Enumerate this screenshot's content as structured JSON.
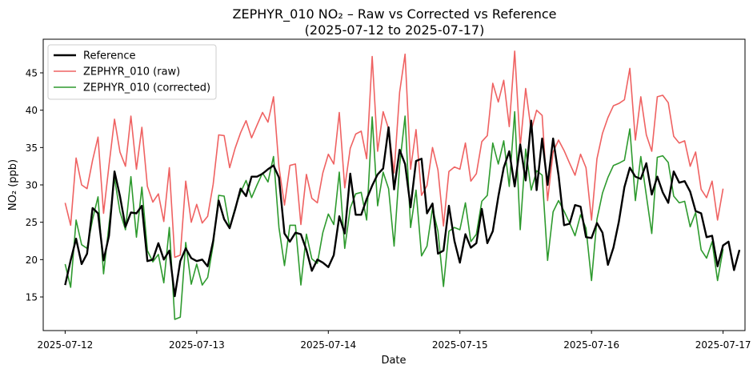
{
  "chart_data": {
    "type": "line",
    "title_line1": "ZEPHYR_010 NO₂ – Raw vs Corrected vs Reference",
    "title_line2": "(2025-07-12 to 2025-07-17)",
    "xlabel": "Date",
    "ylabel": "NO₂ (ppb)",
    "x_start": "2025-07-12T00:00",
    "x_step_hours": 1,
    "xlim": [
      "2025-07-11T20:00",
      "2025-07-17T04:00"
    ],
    "ylim": [
      10.5,
      49.5
    ],
    "x_ticks": [
      "2025-07-12",
      "2025-07-13",
      "2025-07-14",
      "2025-07-15",
      "2025-07-16",
      "2025-07-17"
    ],
    "y_ticks": [
      15,
      20,
      25,
      30,
      35,
      40,
      45
    ],
    "grid": false,
    "legend_position": "top-left",
    "series": [
      {
        "name": "Reference",
        "color": "#000000",
        "values": [
          16.6,
          19.9,
          22.8,
          19.4,
          20.8,
          26.9,
          26.2,
          19.9,
          23.2,
          31.8,
          28.5,
          24.4,
          26.3,
          26.2,
          27.2,
          19.8,
          20.0,
          22.2,
          20.0,
          21.2,
          15.1,
          19.8,
          21.5,
          20.2,
          19.8,
          20.0,
          19.1,
          22.5,
          27.9,
          25.4,
          24.2,
          26.7,
          29.5,
          28.5,
          31.1,
          31.1,
          31.5,
          32.1,
          32.6,
          31.0,
          23.5,
          22.4,
          23.6,
          23.4,
          21.3,
          18.5,
          20.0,
          19.6,
          19.0,
          20.6,
          25.8,
          23.5,
          31.5,
          26.0,
          26.0,
          28.1,
          29.9,
          31.4,
          32.2,
          37.7,
          29.4,
          34.7,
          32.8,
          27.0,
          33.2,
          33.5,
          26.2,
          27.5,
          20.8,
          21.2,
          27.2,
          22.5,
          19.6,
          23.4,
          21.6,
          22.2,
          26.8,
          22.2,
          23.8,
          28.4,
          32.3,
          34.5,
          29.8,
          35.4,
          30.6,
          38.6,
          29.3,
          36.2,
          30.0,
          36.2,
          31.3,
          24.6,
          24.8,
          27.3,
          27.1,
          23.0,
          22.9,
          24.9,
          23.6,
          19.3,
          21.6,
          25.1,
          29.7,
          32.3,
          31.1,
          30.8,
          32.9,
          28.7,
          31.1,
          29.0,
          27.6,
          31.8,
          30.3,
          30.5,
          29.1,
          26.5,
          26.2,
          23.0,
          23.2,
          19.1,
          21.9,
          22.4,
          18.6,
          21.3
        ]
      },
      {
        "name": "ZEPHYR_010 (raw)",
        "color": "#ef6262",
        "values": [
          27.6,
          24.6,
          33.6,
          30.0,
          29.5,
          33.3,
          36.4,
          26.2,
          32.6,
          38.8,
          34.4,
          32.5,
          39.2,
          32.1,
          37.7,
          29.8,
          27.7,
          28.8,
          25.1,
          32.3,
          20.3,
          20.6,
          30.5,
          25.0,
          27.4,
          24.9,
          25.8,
          30.1,
          36.7,
          36.6,
          32.3,
          34.9,
          37.0,
          38.6,
          36.3,
          38.0,
          39.7,
          38.4,
          41.8,
          32.4,
          27.3,
          32.6,
          32.8,
          24.7,
          31.4,
          28.2,
          27.6,
          31.6,
          34.1,
          32.8,
          39.7,
          29.6,
          34.9,
          36.8,
          37.2,
          33.5,
          47.2,
          34.5,
          39.8,
          37.5,
          31.6,
          42.4,
          47.5,
          32.1,
          37.4,
          28.6,
          29.9,
          35.0,
          32.0,
          24.5,
          31.8,
          32.4,
          32.1,
          35.6,
          30.5,
          31.5,
          35.8,
          36.6,
          43.6,
          41.1,
          44.0,
          37.8,
          47.9,
          35.1,
          42.9,
          37.3,
          40.0,
          39.3,
          27.9,
          34.4,
          36.0,
          34.6,
          32.9,
          31.3,
          34.1,
          32.3,
          25.3,
          33.5,
          36.9,
          39.0,
          40.6,
          40.9,
          41.4,
          45.6,
          36.0,
          41.8,
          36.7,
          34.5,
          41.8,
          42.0,
          41.0,
          36.5,
          35.6,
          35.9,
          32.5,
          34.4,
          29.4,
          28.3,
          30.5,
          25.3,
          29.5
        ]
      },
      {
        "name": "ZEPHYR_010 (corrected)",
        "color": "#2e9a2e",
        "values": [
          19.4,
          16.3,
          25.3,
          22.0,
          21.5,
          25.4,
          28.4,
          18.1,
          24.6,
          30.9,
          26.4,
          24.0,
          31.1,
          23.0,
          29.7,
          21.2,
          19.7,
          20.7,
          16.9,
          24.3,
          12.0,
          12.3,
          22.3,
          16.7,
          19.4,
          16.6,
          17.6,
          22.0,
          28.6,
          28.5,
          24.3,
          26.9,
          29.0,
          30.6,
          28.3,
          30.0,
          31.6,
          30.4,
          33.8,
          24.3,
          19.2,
          24.6,
          24.6,
          16.6,
          23.4,
          20.1,
          19.5,
          23.6,
          26.1,
          24.7,
          31.7,
          21.5,
          26.9,
          28.8,
          29.0,
          25.3,
          39.1,
          27.2,
          31.7,
          29.5,
          21.8,
          32.6,
          39.2,
          24.3,
          29.3,
          20.5,
          21.8,
          26.9,
          23.8,
          16.4,
          23.8,
          24.3,
          24.0,
          27.6,
          22.4,
          23.4,
          27.8,
          28.6,
          35.6,
          32.8,
          35.9,
          29.8,
          39.8,
          24.0,
          34.8,
          29.3,
          31.9,
          31.3,
          19.9,
          26.4,
          27.9,
          26.5,
          24.9,
          23.2,
          26.0,
          24.2,
          17.2,
          25.4,
          28.9,
          31.0,
          32.6,
          32.9,
          33.3,
          37.5,
          27.9,
          33.8,
          28.6,
          23.5,
          33.7,
          33.9,
          33.0,
          28.5,
          27.6,
          27.8,
          24.4,
          26.3,
          21.3,
          20.2,
          22.4,
          17.2,
          21.4
        ]
      }
    ]
  }
}
